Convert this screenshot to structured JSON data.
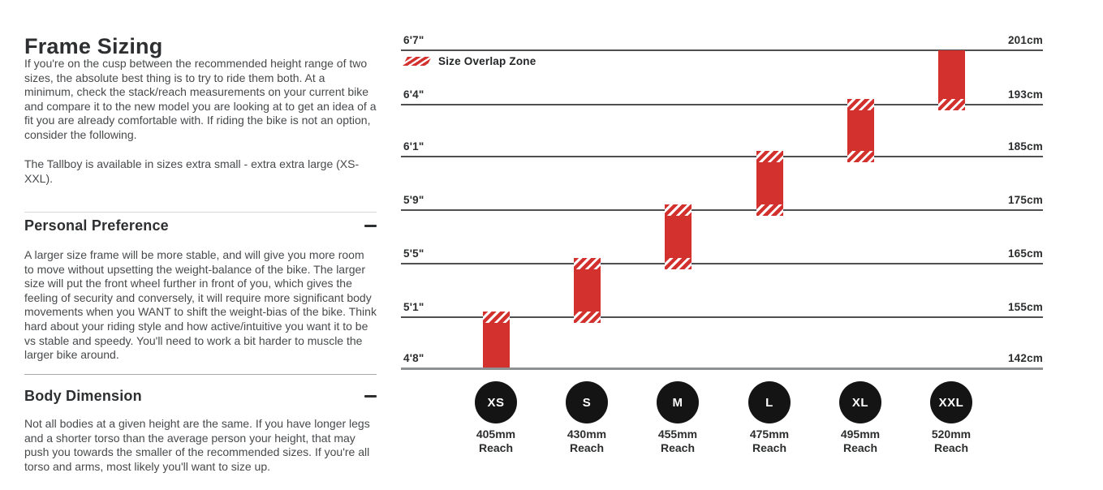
{
  "page": {
    "title": "Frame Sizing",
    "intro": [
      "If you're on the cusp between the recommended height range of two sizes, the absolute best thing is to try to ride them both. At a minimum, check the stack/reach measurements on your current bike and compare it to the new model you are looking at to get an idea of a fit you are already comfortable with. If riding the bike is not an option, consider the following.",
      "The Tallboy is available in sizes extra small - extra extra large (XS-XXL)."
    ]
  },
  "sections": [
    {
      "title": "Personal Preference",
      "collapse_icon": "minus",
      "body": "A larger size frame will be more stable, and will give you more room to move without upsetting the weight-balance of the bike. The larger size will put the front wheel further in front of you, which gives the feeling of security and conversely, it will require more significant body movements when you WANT to shift the weight-bias of the bike. Think hard about your riding style and how active/intuitive you want it to be vs stable and speedy. You'll need to work a bit harder to muscle the larger bike around."
    },
    {
      "title": "Body Dimension",
      "collapse_icon": "minus",
      "body": "Not all bodies at a given height are the same. If you have longer legs and a shorter torso than the average person your height, that may push you towards the smaller of the recommended sizes. If you're all torso and arms, most likely you'll want to size up."
    }
  ],
  "chart_data": {
    "type": "bar",
    "subtype": "vertical-height-ranges",
    "title": "Rider height range per frame size",
    "legend_label": "Size Overlap Zone",
    "reach_caption": "Reach",
    "bar_color": "#d2312e",
    "gridlines": [
      {
        "left": "6'7\"",
        "right": "201cm"
      },
      {
        "left": "6'4\"",
        "right": "193cm"
      },
      {
        "left": "6'1\"",
        "right": "185cm"
      },
      {
        "left": "5'9\"",
        "right": "175cm"
      },
      {
        "left": "5'5\"",
        "right": "165cm"
      },
      {
        "left": "5'1\"",
        "right": "155cm"
      },
      {
        "left": "4'8\"",
        "right": "142cm"
      }
    ],
    "sizes": [
      {
        "size": "XS",
        "reach": "405mm",
        "height_range": "4'8\" - 5'1\" (142-155cm)",
        "top_line": 5,
        "bottom_line": 6,
        "overlap_top": true,
        "overlap_bottom": false
      },
      {
        "size": "S",
        "reach": "430mm",
        "height_range": "5'1\" - 5'5\" (155-165cm)",
        "top_line": 4,
        "bottom_line": 5,
        "overlap_top": true,
        "overlap_bottom": true
      },
      {
        "size": "M",
        "reach": "455mm",
        "height_range": "5'5\" - 5'9\" (165-175cm)",
        "top_line": 3,
        "bottom_line": 4,
        "overlap_top": true,
        "overlap_bottom": true
      },
      {
        "size": "L",
        "reach": "475mm",
        "height_range": "5'9\" - 6'1\" (175-185cm)",
        "top_line": 2,
        "bottom_line": 3,
        "overlap_top": true,
        "overlap_bottom": true
      },
      {
        "size": "XL",
        "reach": "495mm",
        "height_range": "6'1\" - 6'4\" (185-193cm)",
        "top_line": 1,
        "bottom_line": 2,
        "overlap_top": true,
        "overlap_bottom": true
      },
      {
        "size": "XXL",
        "reach": "520mm",
        "height_range": "6'4\" - 6'7\" (193-201cm)",
        "top_line": 0,
        "bottom_line": 1,
        "overlap_top": false,
        "overlap_bottom": true
      }
    ]
  }
}
